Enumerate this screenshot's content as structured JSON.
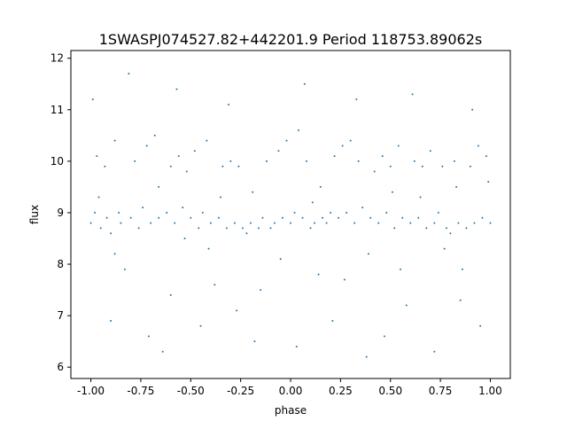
{
  "chart_data": {
    "type": "scatter",
    "title": "1SWASPJ074527.82+442201.9 Period 118753.89062s",
    "xlabel": "phase",
    "ylabel": "flux",
    "xlim": [
      -1.1,
      1.1
    ],
    "ylim": [
      5.78,
      12.15
    ],
    "xticks": [
      "-1.00",
      "-0.75",
      "-0.50",
      "-0.25",
      "0.00",
      "0.25",
      "0.50",
      "0.75",
      "1.00"
    ],
    "xtick_values": [
      -1.0,
      -0.75,
      -0.5,
      -0.25,
      0.0,
      0.25,
      0.5,
      0.75,
      1.0
    ],
    "yticks": [
      "6",
      "7",
      "8",
      "9",
      "10",
      "11",
      "12"
    ],
    "ytick_values": [
      6,
      7,
      8,
      9,
      10,
      11,
      12
    ],
    "grid": false,
    "legend": "none",
    "marker_color": "#1f77b4",
    "points": [
      [
        -1.0,
        8.8
      ],
      [
        -0.98,
        9.0
      ],
      [
        -0.97,
        10.1
      ],
      [
        -0.95,
        8.7
      ],
      [
        -0.93,
        9.9
      ],
      [
        -0.92,
        8.9
      ],
      [
        -0.9,
        8.6
      ],
      [
        -0.88,
        10.4
      ],
      [
        -0.86,
        9.0
      ],
      [
        -0.85,
        8.8
      ],
      [
        -0.83,
        7.9
      ],
      [
        -0.8,
        8.9
      ],
      [
        -0.78,
        10.0
      ],
      [
        -0.76,
        8.7
      ],
      [
        -0.74,
        9.1
      ],
      [
        -0.72,
        10.3
      ],
      [
        -0.7,
        8.8
      ],
      [
        -0.68,
        10.5
      ],
      [
        -0.66,
        8.9
      ],
      [
        -0.64,
        6.3
      ],
      [
        -0.62,
        9.0
      ],
      [
        -0.6,
        9.9
      ],
      [
        -0.58,
        8.8
      ],
      [
        -0.56,
        10.1
      ],
      [
        -0.54,
        9.1
      ],
      [
        -0.52,
        9.8
      ],
      [
        -0.5,
        8.9
      ],
      [
        -0.48,
        10.2
      ],
      [
        -0.46,
        8.7
      ],
      [
        -0.44,
        9.0
      ],
      [
        -0.42,
        10.4
      ],
      [
        -0.4,
        8.8
      ],
      [
        -0.38,
        7.6
      ],
      [
        -0.36,
        8.9
      ],
      [
        -0.34,
        9.9
      ],
      [
        -0.32,
        8.7
      ],
      [
        -0.3,
        10.0
      ],
      [
        -0.28,
        8.8
      ],
      [
        -0.26,
        9.9
      ],
      [
        -0.24,
        8.7
      ],
      [
        -0.22,
        8.6
      ],
      [
        -0.2,
        8.8
      ],
      [
        -0.18,
        6.5
      ],
      [
        -0.16,
        8.7
      ],
      [
        -0.14,
        8.9
      ],
      [
        -0.12,
        10.0
      ],
      [
        -0.1,
        8.7
      ],
      [
        -0.08,
        8.8
      ],
      [
        -0.06,
        10.2
      ],
      [
        -0.04,
        8.9
      ],
      [
        -0.02,
        10.4
      ],
      [
        0.0,
        8.8
      ],
      [
        0.02,
        9.0
      ],
      [
        0.04,
        10.6
      ],
      [
        0.06,
        8.9
      ],
      [
        0.08,
        10.0
      ],
      [
        0.1,
        8.7
      ],
      [
        0.12,
        8.8
      ],
      [
        0.14,
        7.8
      ],
      [
        0.16,
        8.9
      ],
      [
        0.18,
        8.8
      ],
      [
        0.2,
        9.0
      ],
      [
        0.22,
        10.1
      ],
      [
        0.24,
        8.9
      ],
      [
        0.26,
        10.3
      ],
      [
        0.28,
        9.0
      ],
      [
        0.3,
        10.4
      ],
      [
        0.32,
        8.8
      ],
      [
        0.34,
        10.0
      ],
      [
        0.36,
        9.1
      ],
      [
        0.38,
        6.2
      ],
      [
        0.4,
        8.9
      ],
      [
        0.42,
        9.8
      ],
      [
        0.44,
        8.8
      ],
      [
        0.46,
        10.1
      ],
      [
        0.48,
        9.0
      ],
      [
        0.5,
        9.9
      ],
      [
        0.52,
        8.7
      ],
      [
        0.54,
        10.3
      ],
      [
        0.56,
        8.9
      ],
      [
        0.58,
        7.2
      ],
      [
        0.6,
        8.8
      ],
      [
        0.62,
        10.0
      ],
      [
        0.64,
        8.9
      ],
      [
        0.66,
        9.9
      ],
      [
        0.68,
        8.7
      ],
      [
        0.7,
        10.2
      ],
      [
        0.72,
        8.8
      ],
      [
        0.74,
        9.0
      ],
      [
        0.76,
        9.9
      ],
      [
        0.78,
        8.7
      ],
      [
        0.8,
        8.6
      ],
      [
        0.82,
        10.0
      ],
      [
        0.84,
        8.8
      ],
      [
        0.86,
        7.9
      ],
      [
        0.88,
        8.7
      ],
      [
        0.9,
        9.9
      ],
      [
        0.92,
        8.8
      ],
      [
        0.94,
        10.3
      ],
      [
        0.96,
        8.9
      ],
      [
        0.98,
        10.1
      ],
      [
        1.0,
        8.8
      ],
      [
        -0.99,
        11.2
      ],
      [
        -0.81,
        11.7
      ],
      [
        -0.57,
        11.4
      ],
      [
        -0.31,
        11.1
      ],
      [
        0.07,
        11.5
      ],
      [
        0.33,
        11.2
      ],
      [
        0.61,
        11.3
      ],
      [
        0.91,
        11.0
      ],
      [
        -0.9,
        6.9
      ],
      [
        -0.71,
        6.6
      ],
      [
        -0.45,
        6.8
      ],
      [
        -0.27,
        7.1
      ],
      [
        0.03,
        6.4
      ],
      [
        0.21,
        6.9
      ],
      [
        0.47,
        6.6
      ],
      [
        0.72,
        6.3
      ],
      [
        0.95,
        6.8
      ],
      [
        -0.6,
        7.4
      ],
      [
        -0.15,
        7.5
      ],
      [
        0.27,
        7.7
      ],
      [
        0.55,
        7.9
      ],
      [
        0.85,
        7.3
      ],
      [
        -0.88,
        8.2
      ],
      [
        -0.41,
        8.3
      ],
      [
        -0.05,
        8.1
      ],
      [
        0.39,
        8.2
      ],
      [
        0.77,
        8.3
      ],
      [
        -0.66,
        9.5
      ],
      [
        -0.19,
        9.4
      ],
      [
        0.15,
        9.5
      ],
      [
        0.51,
        9.4
      ],
      [
        0.83,
        9.5
      ],
      [
        -0.96,
        9.3
      ],
      [
        -0.35,
        9.3
      ],
      [
        0.11,
        9.2
      ],
      [
        0.65,
        9.3
      ],
      [
        0.99,
        9.6
      ],
      [
        -0.53,
        8.5
      ]
    ]
  }
}
